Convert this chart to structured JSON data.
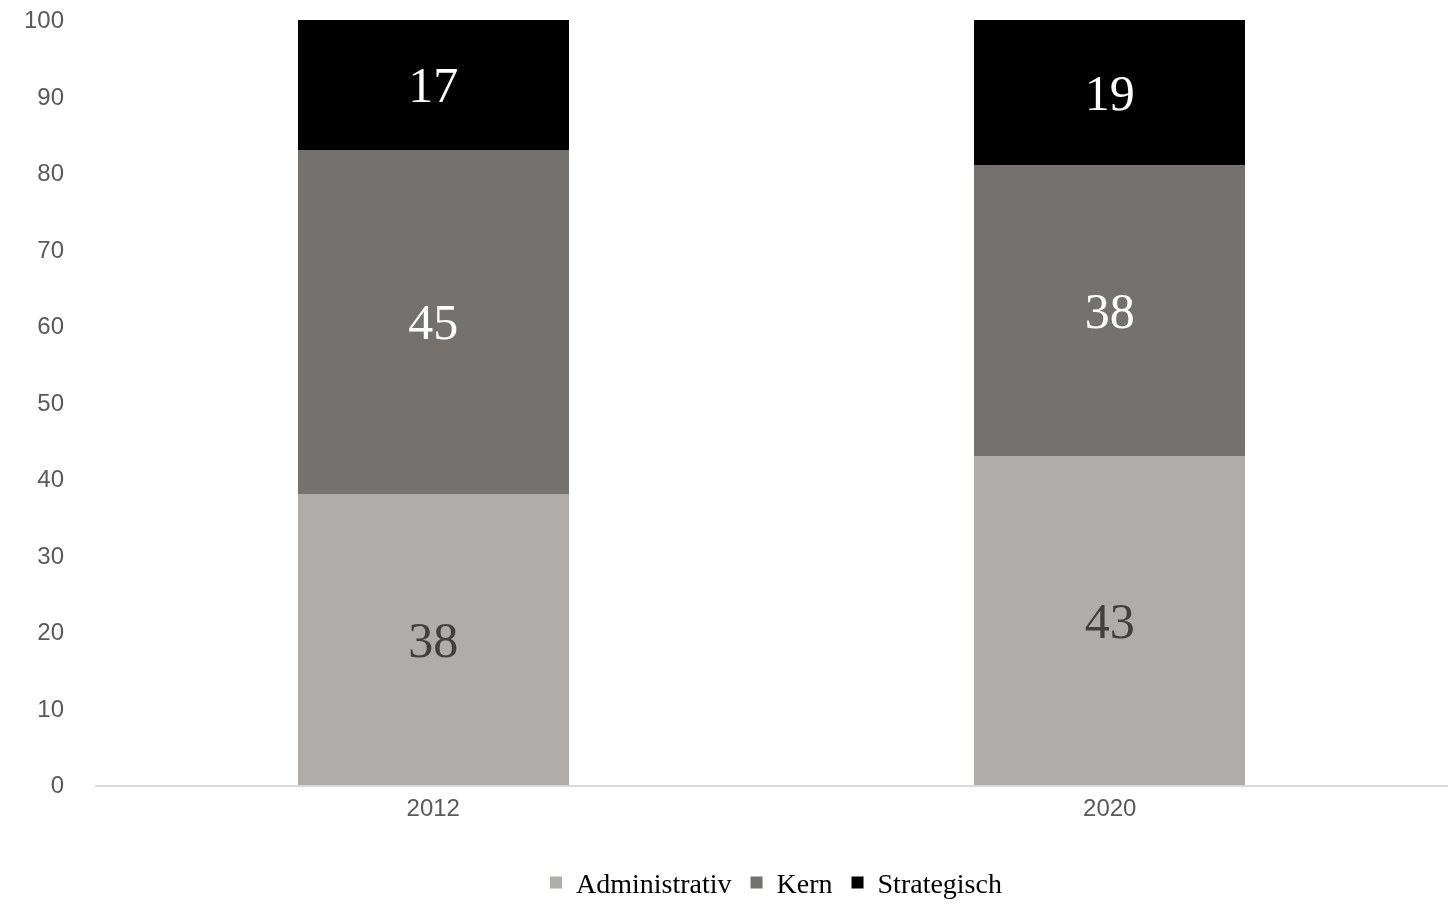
{
  "chart_data": {
    "type": "bar",
    "stacked": true,
    "categories": [
      "2012",
      "2020"
    ],
    "series": [
      {
        "name": "Administrativ",
        "color": "#afacaa",
        "values": [
          38,
          43
        ]
      },
      {
        "name": "Kern",
        "color": "#75716f",
        "values": [
          45,
          38
        ]
      },
      {
        "name": "Strategisch",
        "color": "#000000",
        "values": [
          17,
          19
        ]
      }
    ],
    "ylim": [
      0,
      100
    ],
    "yticks": [
      0,
      10,
      20,
      30,
      40,
      50,
      60,
      70,
      80,
      90,
      100
    ],
    "grid": false,
    "legend": "bottom",
    "data_labels": true
  }
}
